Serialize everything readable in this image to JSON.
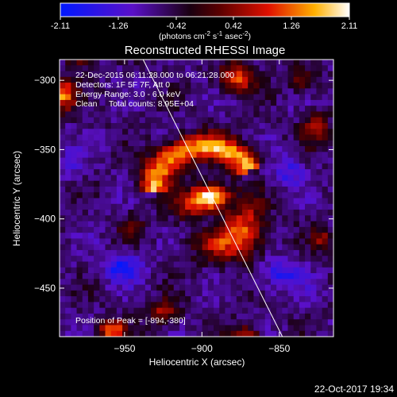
{
  "colorbar": {
    "ticks": [
      "-2.11",
      "-1.26",
      "-0.42",
      "0.42",
      "1.26",
      "2.11"
    ],
    "units_main": "(photons cm",
    "units_exp1": "-2",
    "units_mid": " s",
    "units_exp2": "-1",
    "units_end": " asec",
    "units_exp3": "-2",
    "units_close": ")"
  },
  "chart_data": {
    "type": "heatmap",
    "title": "Reconstructed RHESSI Image",
    "xlabel": "Heliocentric X (arcsec)",
    "ylabel": "Heliocentric Y (arcsec)",
    "xlim": [
      -992,
      -815
    ],
    "ylim": [
      -485,
      -285
    ],
    "xticks": [
      -950,
      -900,
      -850
    ],
    "yticks": [
      -300,
      -350,
      -400,
      -450
    ],
    "color_range": [
      -2.11,
      2.11
    ],
    "colormap": "blue-black-red-yellow-white",
    "peak": [
      -894,
      -380
    ],
    "limb_line": [
      [
        -938,
        -285
      ],
      [
        -848,
        -485
      ]
    ],
    "annotations": [
      "22-Dec-2015 06:11:28.000 to 06:21:28.000",
      "Detectors: 1F 5F 7F, Att 0",
      "Energy Range: 3.0 - 6.0 keV",
      "Clean     Total counts: 8.95E+04"
    ],
    "peak_text": "Position of Peak = [-894,-380]"
  },
  "footer": {
    "date": "22-Oct-2017 19:34"
  }
}
